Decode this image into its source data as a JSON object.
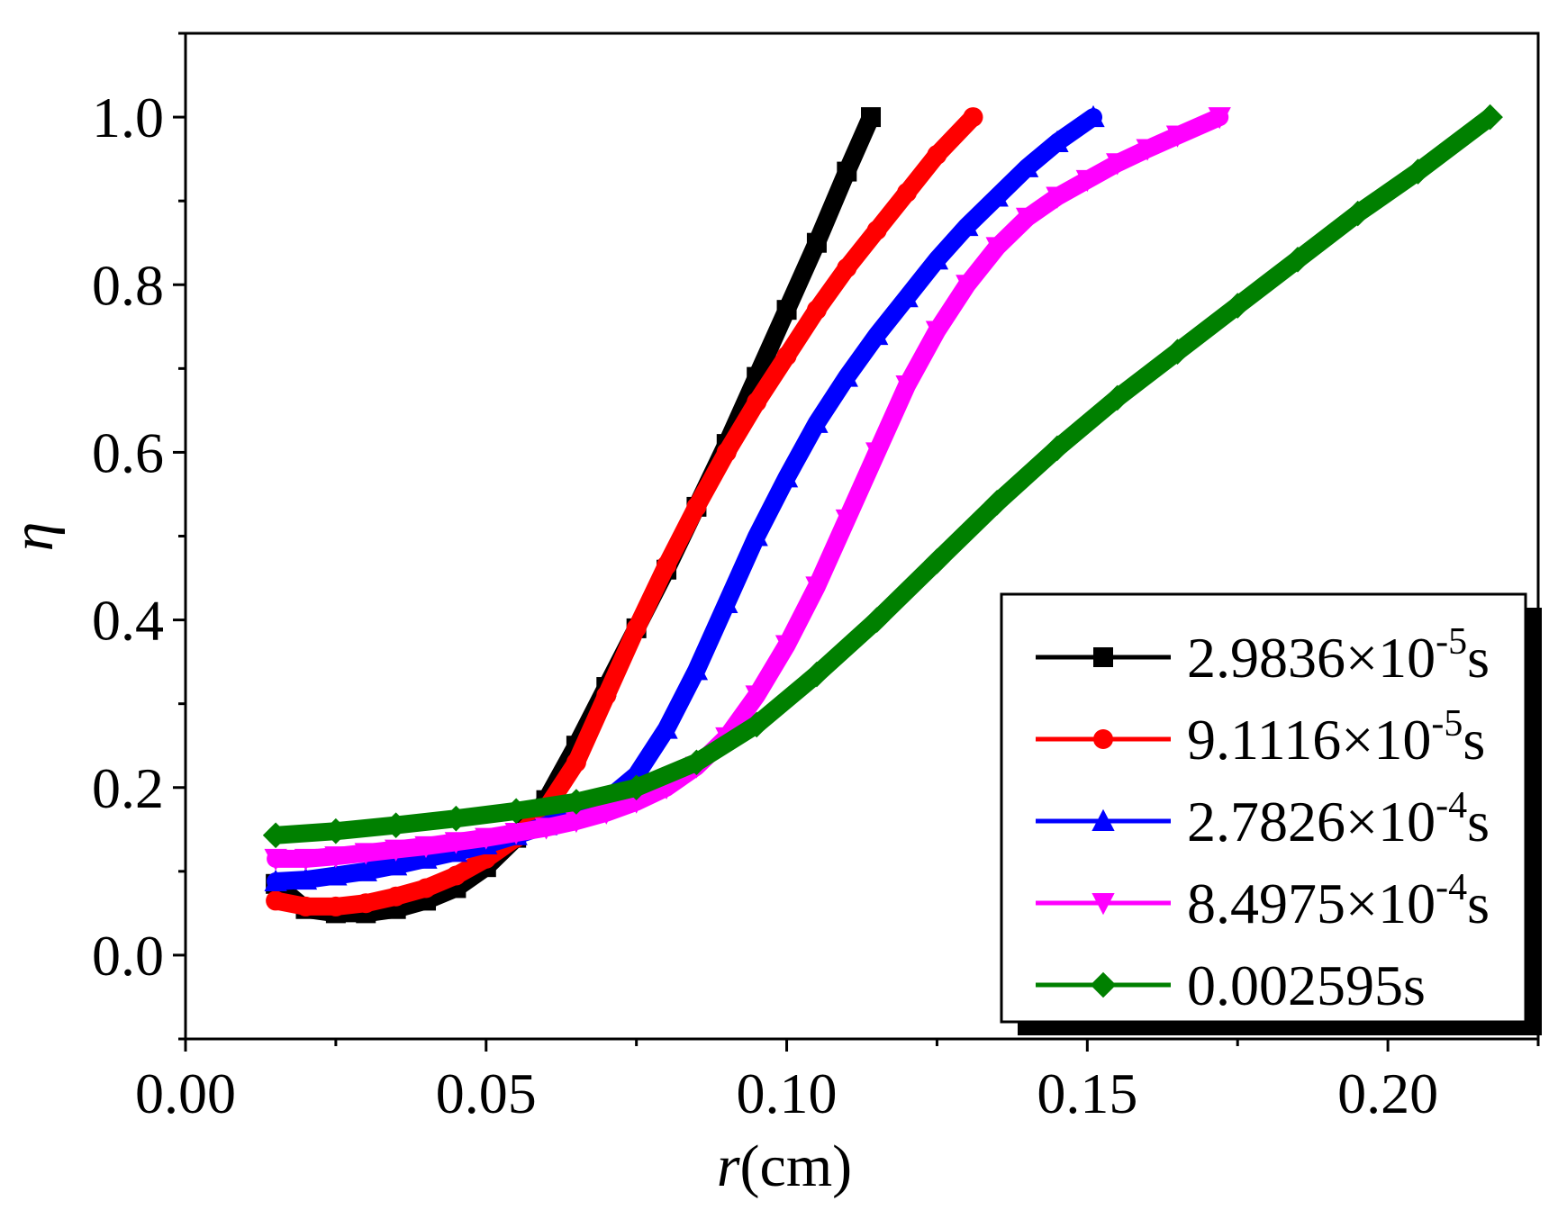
{
  "chart_data": {
    "type": "line",
    "title": "",
    "xlabel": {
      "italic": "r",
      "rest": "(cm)"
    },
    "ylabel": "η",
    "xlim": [
      0.0,
      0.225
    ],
    "ylim": [
      -0.1,
      1.1
    ],
    "xticks": [
      0.0,
      0.05,
      0.1,
      0.15,
      0.2
    ],
    "xtick_labels": [
      "0.00",
      "0.05",
      "0.10",
      "0.15",
      "0.20"
    ],
    "xminor": [
      0.025,
      0.075,
      0.125,
      0.175,
      0.225
    ],
    "yticks": [
      0.0,
      0.2,
      0.4,
      0.6,
      0.8,
      1.0
    ],
    "ytick_labels": [
      "0.0",
      "0.2",
      "0.4",
      "0.6",
      "0.8",
      "1.0"
    ],
    "yminor": [
      -0.1,
      0.1,
      0.3,
      0.5,
      0.7,
      0.9,
      1.1
    ],
    "legend_position": "bottom-right",
    "series": [
      {
        "name": "2.9836×10-5s",
        "label": {
          "base": "2.9836×10",
          "exp": "-5",
          "unit": "s"
        },
        "color": "#000000",
        "marker": "square",
        "x": [
          0.015,
          0.02,
          0.025,
          0.03,
          0.035,
          0.04,
          0.045,
          0.05,
          0.055,
          0.06,
          0.065,
          0.07,
          0.075,
          0.08,
          0.085,
          0.09,
          0.095,
          0.1,
          0.105,
          0.11,
          0.114
        ],
        "y": [
          0.085,
          0.055,
          0.05,
          0.05,
          0.055,
          0.065,
          0.08,
          0.105,
          0.14,
          0.185,
          0.25,
          0.32,
          0.39,
          0.46,
          0.535,
          0.61,
          0.69,
          0.77,
          0.85,
          0.935,
          1.0
        ]
      },
      {
        "name": "9.1116×10-5s",
        "label": {
          "base": "9.1116×10",
          "exp": "-5",
          "unit": "s"
        },
        "color": "#ff0000",
        "marker": "circle",
        "x": [
          0.015,
          0.02,
          0.025,
          0.03,
          0.035,
          0.04,
          0.045,
          0.05,
          0.055,
          0.06,
          0.065,
          0.07,
          0.075,
          0.08,
          0.085,
          0.09,
          0.095,
          0.1,
          0.105,
          0.11,
          0.115,
          0.12,
          0.125,
          0.131
        ],
        "y": [
          0.065,
          0.058,
          0.058,
          0.062,
          0.07,
          0.08,
          0.095,
          0.115,
          0.14,
          0.175,
          0.23,
          0.31,
          0.39,
          0.465,
          0.535,
          0.6,
          0.66,
          0.715,
          0.77,
          0.82,
          0.865,
          0.91,
          0.955,
          1.0
        ]
      },
      {
        "name": "2.7826×10-4s",
        "label": {
          "base": "2.7826×10",
          "exp": "-4",
          "unit": "s"
        },
        "color": "#0000ff",
        "marker": "triangle-up",
        "x": [
          0.015,
          0.02,
          0.025,
          0.03,
          0.035,
          0.04,
          0.045,
          0.05,
          0.055,
          0.06,
          0.065,
          0.07,
          0.075,
          0.08,
          0.085,
          0.09,
          0.095,
          0.1,
          0.105,
          0.11,
          0.115,
          0.12,
          0.125,
          0.13,
          0.135,
          0.14,
          0.145,
          0.151
        ],
        "y": [
          0.088,
          0.09,
          0.095,
          0.1,
          0.107,
          0.115,
          0.123,
          0.132,
          0.143,
          0.155,
          0.168,
          0.185,
          0.215,
          0.27,
          0.34,
          0.42,
          0.5,
          0.57,
          0.635,
          0.69,
          0.74,
          0.785,
          0.83,
          0.87,
          0.905,
          0.94,
          0.97,
          1.0
        ]
      },
      {
        "name": "8.4975×10-4s",
        "label": {
          "base": "8.4975×10",
          "exp": "-4",
          "unit": "s"
        },
        "color": "#ff00ff",
        "marker": "triangle-down",
        "x": [
          0.015,
          0.02,
          0.025,
          0.03,
          0.035,
          0.04,
          0.045,
          0.05,
          0.055,
          0.06,
          0.065,
          0.07,
          0.075,
          0.08,
          0.085,
          0.09,
          0.095,
          0.1,
          0.105,
          0.11,
          0.115,
          0.12,
          0.125,
          0.13,
          0.135,
          0.14,
          0.145,
          0.15,
          0.155,
          0.16,
          0.165,
          0.172
        ],
        "y": [
          0.115,
          0.115,
          0.118,
          0.122,
          0.126,
          0.13,
          0.135,
          0.14,
          0.146,
          0.152,
          0.16,
          0.17,
          0.183,
          0.2,
          0.225,
          0.26,
          0.31,
          0.37,
          0.44,
          0.52,
          0.6,
          0.68,
          0.745,
          0.8,
          0.845,
          0.88,
          0.905,
          0.925,
          0.945,
          0.962,
          0.978,
          1.0
        ]
      },
      {
        "name": "0.002595s",
        "label": {
          "base": "0.002595",
          "exp": "",
          "unit": "s"
        },
        "color": "#008000",
        "marker": "diamond",
        "x": [
          0.015,
          0.025,
          0.035,
          0.045,
          0.055,
          0.065,
          0.075,
          0.085,
          0.095,
          0.105,
          0.115,
          0.125,
          0.135,
          0.145,
          0.155,
          0.165,
          0.175,
          0.185,
          0.195,
          0.205,
          0.217
        ],
        "y": [
          0.143,
          0.148,
          0.155,
          0.163,
          0.172,
          0.183,
          0.2,
          0.23,
          0.275,
          0.335,
          0.4,
          0.47,
          0.54,
          0.605,
          0.665,
          0.72,
          0.775,
          0.83,
          0.885,
          0.935,
          1.0
        ]
      }
    ]
  }
}
